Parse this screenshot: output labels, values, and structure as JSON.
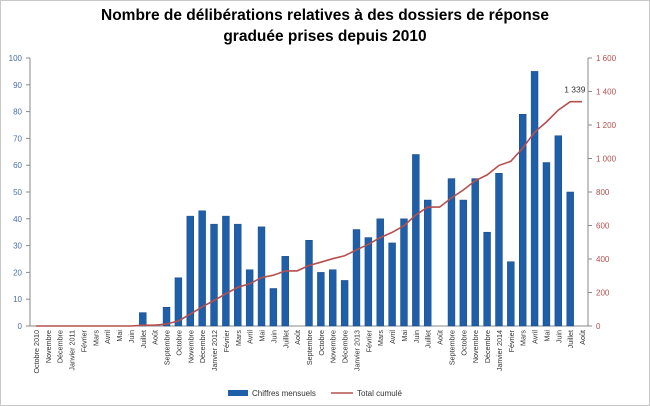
{
  "chart_data": {
    "type": "bar+line",
    "title_lines": [
      "Nombre de délibérations relatives à des dossiers de réponse",
      "graduée prises depuis 2010"
    ],
    "categories": [
      "Octobre 2010",
      "Novembre",
      "Décembre",
      "Janvier 2011",
      "Février",
      "Mars",
      "Avril",
      "Mai",
      "Juin",
      "Juillet",
      "Août",
      "Septembre",
      "Octobre",
      "Novembre",
      "Décembre",
      "Janvier 2012",
      "Février",
      "Mars",
      "Avril",
      "Mai",
      "Juin",
      "Juillet",
      "Août",
      "Septembre",
      "Octobre",
      "Novembre",
      "Décembre",
      "Janvier 2013",
      "Février",
      "Mars",
      "Avril",
      "Mai",
      "Juin",
      "Juillet",
      "Août",
      "Septembre",
      "Octobre",
      "Novembre",
      "Décembre",
      "Janvier 2014",
      "Février",
      "Mars",
      "Avril",
      "Mai",
      "Juin",
      "Juillet",
      "Août"
    ],
    "series": [
      {
        "name": "Chiffres mensuels",
        "type": "bar",
        "axis": "left",
        "color": "#1f5ea8",
        "values": [
          0,
          0,
          0,
          0,
          0,
          0,
          0,
          0,
          0,
          5,
          0,
          7,
          18,
          41,
          43,
          38,
          41,
          38,
          21,
          37,
          14,
          26,
          0,
          32,
          20,
          21,
          17,
          36,
          33,
          40,
          31,
          40,
          64,
          47,
          0,
          55,
          47,
          55,
          35,
          57,
          24,
          79,
          95,
          61,
          71,
          50,
          0
        ]
      },
      {
        "name": "Total cumulé",
        "type": "line",
        "axis": "right",
        "color": "#b5504e",
        "values": [
          0,
          0,
          0,
          0,
          0,
          0,
          0,
          0,
          0,
          5,
          5,
          12,
          30,
          71,
          114,
          152,
          193,
          231,
          252,
          289,
          303,
          329,
          329,
          361,
          381,
          402,
          419,
          455,
          488,
          528,
          559,
          599,
          663,
          710,
          710,
          765,
          812,
          867,
          902,
          959,
          983,
          1062,
          1157,
          1218,
          1289,
          1339,
          1339
        ]
      }
    ],
    "annotation": "1 339",
    "y_left": {
      "min": 0,
      "max": 100,
      "ticks": [
        "0",
        "10",
        "20",
        "30",
        "40",
        "50",
        "60",
        "70",
        "80",
        "90",
        "100"
      ]
    },
    "y_right": {
      "min": 0,
      "max": 1600,
      "ticks": [
        "0",
        "200",
        "400",
        "600",
        "800",
        "1 000",
        "1 200",
        "1 400",
        "1 600"
      ]
    },
    "legend_position": "bottom",
    "grid": false
  }
}
